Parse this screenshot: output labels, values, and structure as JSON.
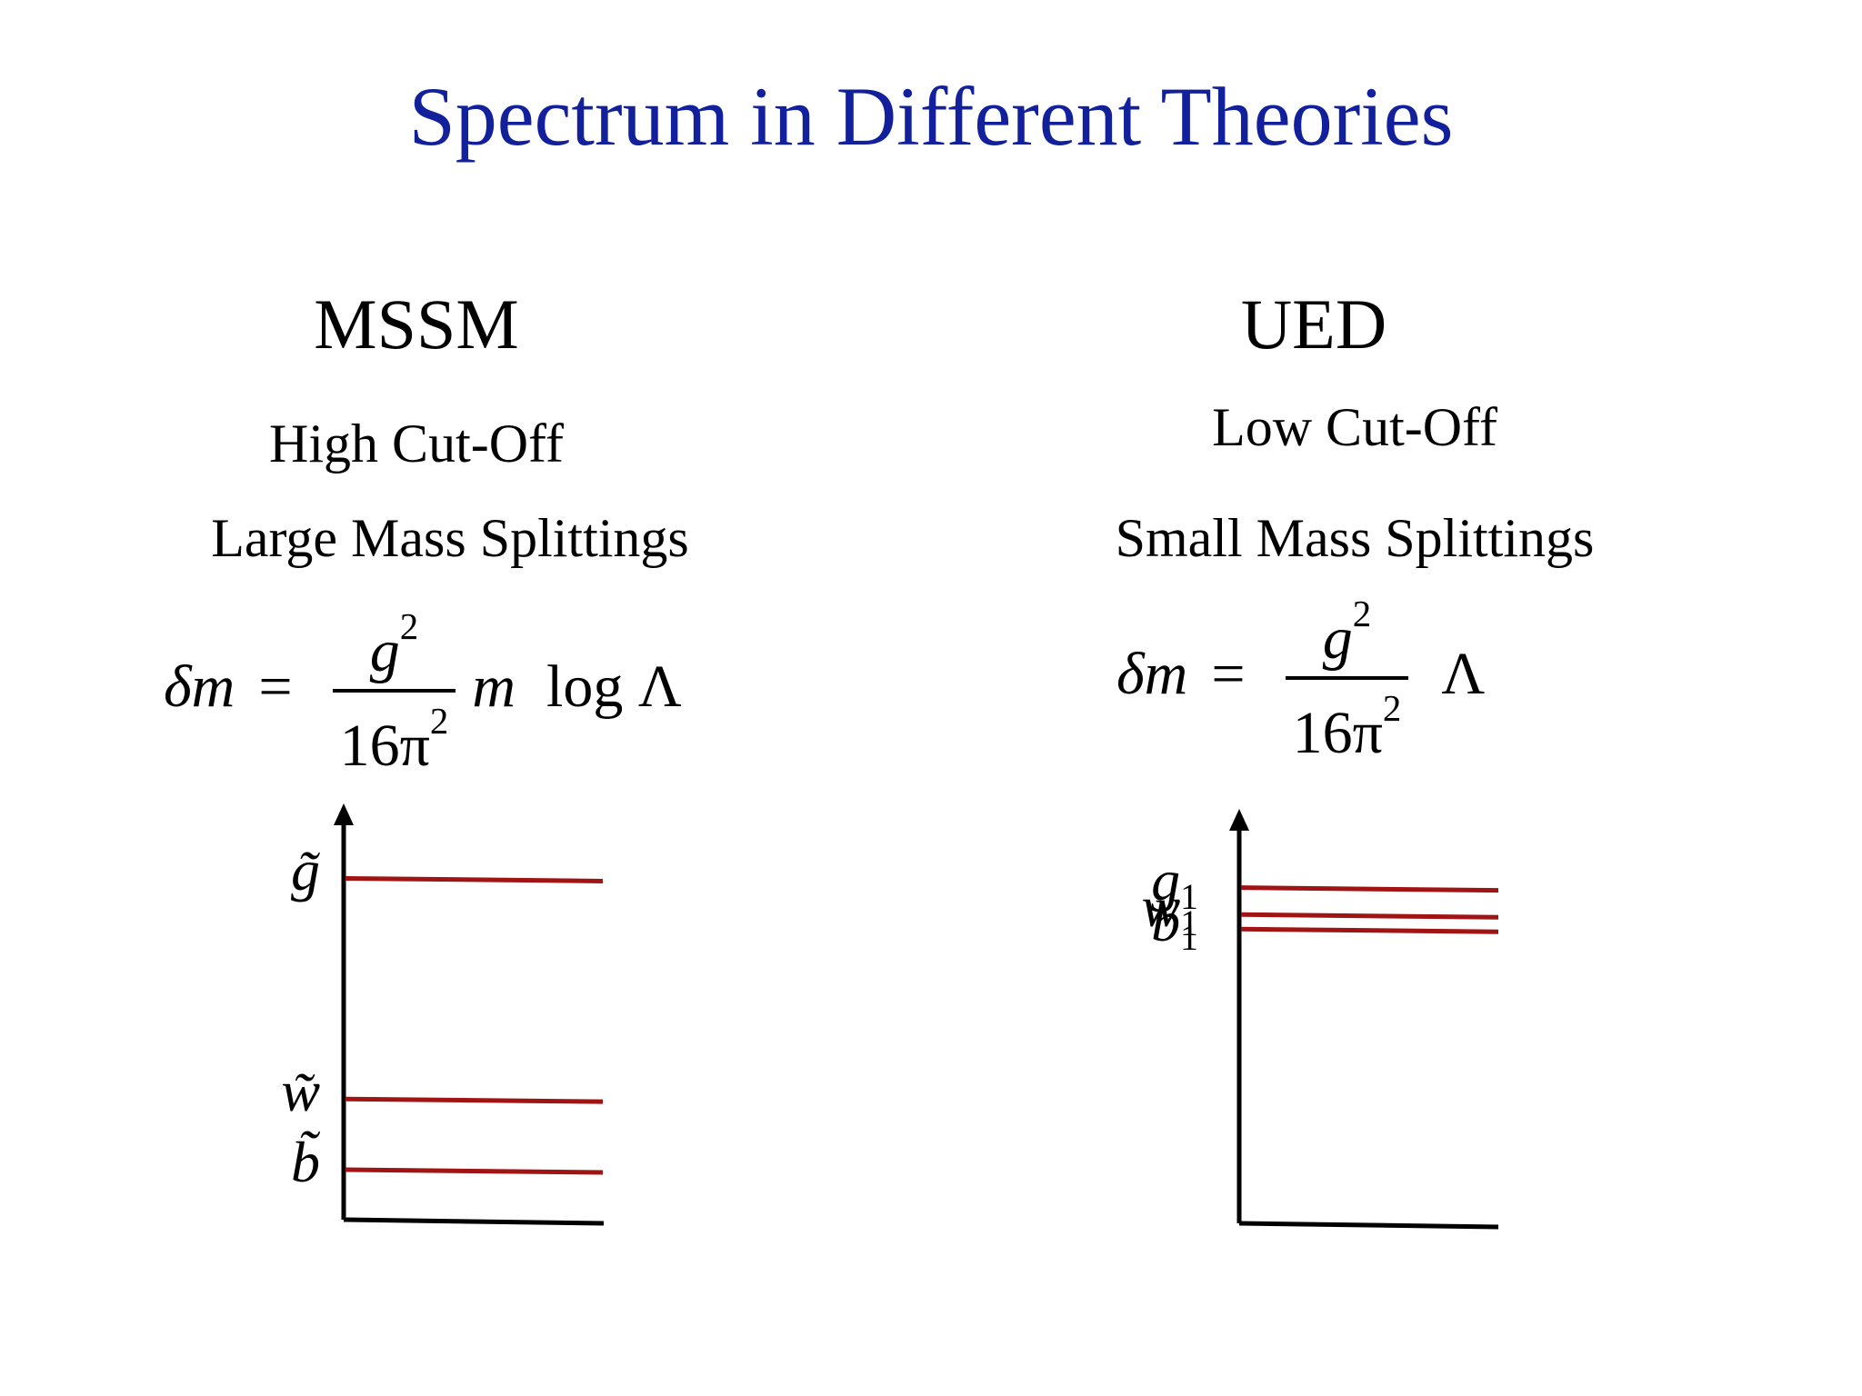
{
  "title": "Spectrum in Different Theories",
  "colors": {
    "title": "#12209b",
    "level": "#a01414",
    "axis": "#000000"
  },
  "left": {
    "heading": "MSSM",
    "line1": "High Cut-Off",
    "line2": "Large Mass Splittings",
    "formula": {
      "lhs": "δm",
      "eq": "=",
      "num": "g",
      "num_exp": "2",
      "den": "16π",
      "den_exp": "2",
      "tail_var": "m",
      "tail_text": "log Λ"
    },
    "levels": [
      {
        "base": "g̃",
        "sub": "",
        "value": 0.82
      },
      {
        "base": "w̃",
        "sub": "",
        "value": 0.29
      },
      {
        "base": "b̃",
        "sub": "",
        "value": 0.12
      }
    ]
  },
  "right": {
    "heading": "UED",
    "line1": "Low Cut-Off",
    "line2": "Small Mass Splittings",
    "formula": {
      "lhs": "δm",
      "eq": "=",
      "num": "g",
      "num_exp": "2",
      "den": "16π",
      "den_exp": "2",
      "tail_text": "Λ"
    },
    "levels": [
      {
        "base": "g",
        "sub": "1",
        "value": 0.81
      },
      {
        "base": "w",
        "sub": "1",
        "value": 0.745
      },
      {
        "base": "b",
        "sub": "1",
        "value": 0.71
      }
    ]
  }
}
